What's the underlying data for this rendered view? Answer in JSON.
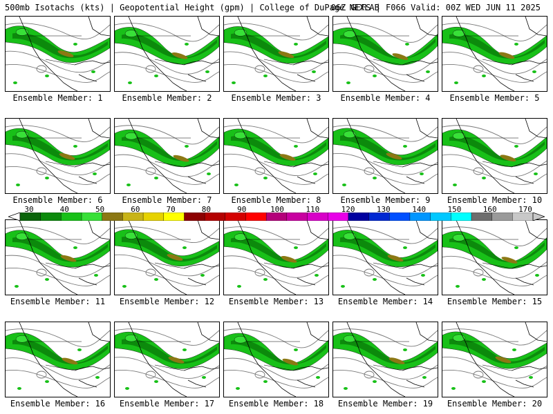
{
  "header": {
    "left": "500mb Isotachs (kts) | Geopotential Height (gpm) | College of DuPage NEXLAB",
    "right": "06Z GEFS | F066 Valid: 00Z WED JUN 11 2025"
  },
  "panels": [
    {
      "label": "Ensemble Member: 1"
    },
    {
      "label": "Ensemble Member: 2"
    },
    {
      "label": "Ensemble Member: 3"
    },
    {
      "label": "Ensemble Member: 4"
    },
    {
      "label": "Ensemble Member: 5"
    },
    {
      "label": "Ensemble Member: 6"
    },
    {
      "label": "Ensemble Member: 7"
    },
    {
      "label": "Ensemble Member: 8"
    },
    {
      "label": "Ensemble Member: 9"
    },
    {
      "label": "Ensemble Member: 10"
    },
    {
      "label": "Ensemble Member: 11"
    },
    {
      "label": "Ensemble Member: 12"
    },
    {
      "label": "Ensemble Member: 13"
    },
    {
      "label": "Ensemble Member: 14"
    },
    {
      "label": "Ensemble Member: 15"
    },
    {
      "label": "Ensemble Member: 16"
    },
    {
      "label": "Ensemble Member: 17"
    },
    {
      "label": "Ensemble Member: 18"
    },
    {
      "label": "Ensemble Member: 19"
    },
    {
      "label": "Ensemble Member: 20"
    }
  ],
  "colorbar": {
    "labels": [
      "30",
      "40",
      "50",
      "60",
      "70",
      "80",
      "90",
      "100",
      "110",
      "120",
      "130",
      "140",
      "150",
      "160",
      "170"
    ],
    "colors": [
      "#0a640a",
      "#0c8a0c",
      "#18c018",
      "#38e038",
      "#8c7814",
      "#c8b418",
      "#e6d200",
      "#ffff00",
      "#8c0000",
      "#b40000",
      "#d40000",
      "#ff0000",
      "#b4007a",
      "#c800a0",
      "#d800c8",
      "#e800e8",
      "#0000a0",
      "#0028d2",
      "#0050ff",
      "#0096ff",
      "#00c8ff",
      "#00ffff",
      "#6e6e6e",
      "#9a9a9a",
      "#c8c8c8"
    ]
  }
}
